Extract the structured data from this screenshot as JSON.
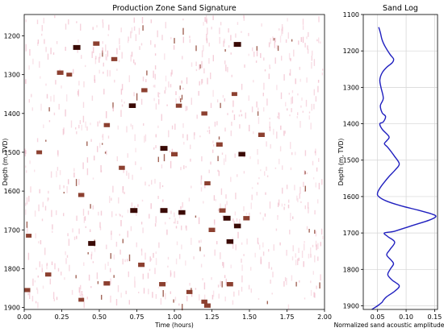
{
  "chart_data": [
    {
      "type": "heatmap",
      "title": "Production Zone Sand Signature",
      "xlabel": "Time (hours)",
      "ylabel": "Depth (m, TVD)",
      "xlim": [
        0,
        2
      ],
      "ylim": [
        1905,
        1145
      ],
      "xticks": [
        "0.00",
        "0.25",
        "0.50",
        "0.75",
        "1.00",
        "1.25",
        "1.50",
        "1.75",
        "2.00"
      ],
      "yticks": [
        "1200",
        "1300",
        "1400",
        "1500",
        "1600",
        "1700",
        "1800",
        "1900"
      ],
      "colors": {
        "strong": "#3a0a05",
        "medium": "#8c4030",
        "faint": "#f0b8c8",
        "background": "#ffffff"
      },
      "hot_events": [
        {
          "t": 0.35,
          "d": 1230,
          "v": 1.0
        },
        {
          "t": 0.48,
          "d": 1220,
          "v": 0.8
        },
        {
          "t": 1.42,
          "d": 1222,
          "v": 1.0
        },
        {
          "t": 0.6,
          "d": 1260,
          "v": 0.7
        },
        {
          "t": 0.24,
          "d": 1295,
          "v": 0.8
        },
        {
          "t": 0.3,
          "d": 1300,
          "v": 0.6
        },
        {
          "t": 0.8,
          "d": 1340,
          "v": 0.7
        },
        {
          "t": 1.4,
          "d": 1350,
          "v": 0.6
        },
        {
          "t": 0.72,
          "d": 1380,
          "v": 0.9
        },
        {
          "t": 1.03,
          "d": 1380,
          "v": 0.7
        },
        {
          "t": 1.2,
          "d": 1400,
          "v": 0.7
        },
        {
          "t": 0.55,
          "d": 1430,
          "v": 0.7
        },
        {
          "t": 1.58,
          "d": 1455,
          "v": 0.8
        },
        {
          "t": 0.93,
          "d": 1490,
          "v": 1.0
        },
        {
          "t": 1.0,
          "d": 1505,
          "v": 0.8
        },
        {
          "t": 1.3,
          "d": 1480,
          "v": 0.8
        },
        {
          "t": 1.45,
          "d": 1505,
          "v": 0.9
        },
        {
          "t": 0.1,
          "d": 1500,
          "v": 0.6
        },
        {
          "t": 0.65,
          "d": 1540,
          "v": 0.7
        },
        {
          "t": 1.22,
          "d": 1580,
          "v": 0.7
        },
        {
          "t": 0.38,
          "d": 1610,
          "v": 0.7
        },
        {
          "t": 0.73,
          "d": 1650,
          "v": 1.0
        },
        {
          "t": 0.93,
          "d": 1650,
          "v": 1.0
        },
        {
          "t": 1.05,
          "d": 1655,
          "v": 0.9
        },
        {
          "t": 1.35,
          "d": 1670,
          "v": 1.0
        },
        {
          "t": 1.42,
          "d": 1690,
          "v": 0.9
        },
        {
          "t": 1.32,
          "d": 1650,
          "v": 0.8
        },
        {
          "t": 1.25,
          "d": 1700,
          "v": 0.8
        },
        {
          "t": 1.48,
          "d": 1670,
          "v": 0.8
        },
        {
          "t": 0.45,
          "d": 1735,
          "v": 1.0
        },
        {
          "t": 1.37,
          "d": 1730,
          "v": 0.9
        },
        {
          "t": 0.03,
          "d": 1715,
          "v": 0.6
        },
        {
          "t": 0.78,
          "d": 1790,
          "v": 0.8
        },
        {
          "t": 0.92,
          "d": 1840,
          "v": 0.8
        },
        {
          "t": 0.55,
          "d": 1838,
          "v": 0.8
        },
        {
          "t": 1.37,
          "d": 1840,
          "v": 0.8
        },
        {
          "t": 1.1,
          "d": 1860,
          "v": 0.7
        },
        {
          "t": 0.02,
          "d": 1855,
          "v": 0.7
        },
        {
          "t": 1.2,
          "d": 1885,
          "v": 0.7
        },
        {
          "t": 1.22,
          "d": 1895,
          "v": 0.8
        },
        {
          "t": 0.38,
          "d": 1880,
          "v": 0.6
        },
        {
          "t": 0.16,
          "d": 1815,
          "v": 0.7
        }
      ]
    },
    {
      "type": "line",
      "title": "Sand Log",
      "xlabel": "Normalized sand acoustic amplitude",
      "ylabel": "Depth (m, TVD)",
      "xlim": [
        0.025,
        0.155
      ],
      "ylim": [
        1910,
        1100
      ],
      "xticks": [
        "0.05",
        "0.10",
        "0.15"
      ],
      "yticks": [
        "1100",
        "1200",
        "1300",
        "1400",
        "1500",
        "1600",
        "1700",
        "1800",
        "1900"
      ],
      "grid": true,
      "line_color": "#1f1fbf",
      "x": [
        0.052,
        0.055,
        0.058,
        0.064,
        0.072,
        0.078,
        0.076,
        0.066,
        0.058,
        0.054,
        0.056,
        0.06,
        0.055,
        0.058,
        0.064,
        0.06,
        0.054,
        0.058,
        0.07,
        0.067,
        0.062,
        0.068,
        0.08,
        0.088,
        0.082,
        0.07,
        0.062,
        0.055,
        0.05,
        0.052,
        0.065,
        0.09,
        0.12,
        0.145,
        0.152,
        0.14,
        0.11,
        0.08,
        0.062,
        0.068,
        0.08,
        0.072,
        0.066,
        0.074,
        0.078,
        0.072,
        0.068,
        0.076,
        0.088,
        0.08,
        0.066,
        0.06,
        0.058,
        0.05,
        0.04
      ],
      "y": [
        1135,
        1150,
        1170,
        1190,
        1210,
        1222,
        1232,
        1245,
        1260,
        1280,
        1300,
        1330,
        1350,
        1370,
        1380,
        1395,
        1400,
        1415,
        1435,
        1445,
        1455,
        1465,
        1490,
        1510,
        1525,
        1545,
        1560,
        1575,
        1590,
        1600,
        1612,
        1625,
        1637,
        1648,
        1655,
        1665,
        1680,
        1695,
        1700,
        1710,
        1725,
        1745,
        1760,
        1775,
        1785,
        1800,
        1815,
        1830,
        1845,
        1860,
        1875,
        1885,
        1890,
        1900,
        1910
      ]
    }
  ]
}
